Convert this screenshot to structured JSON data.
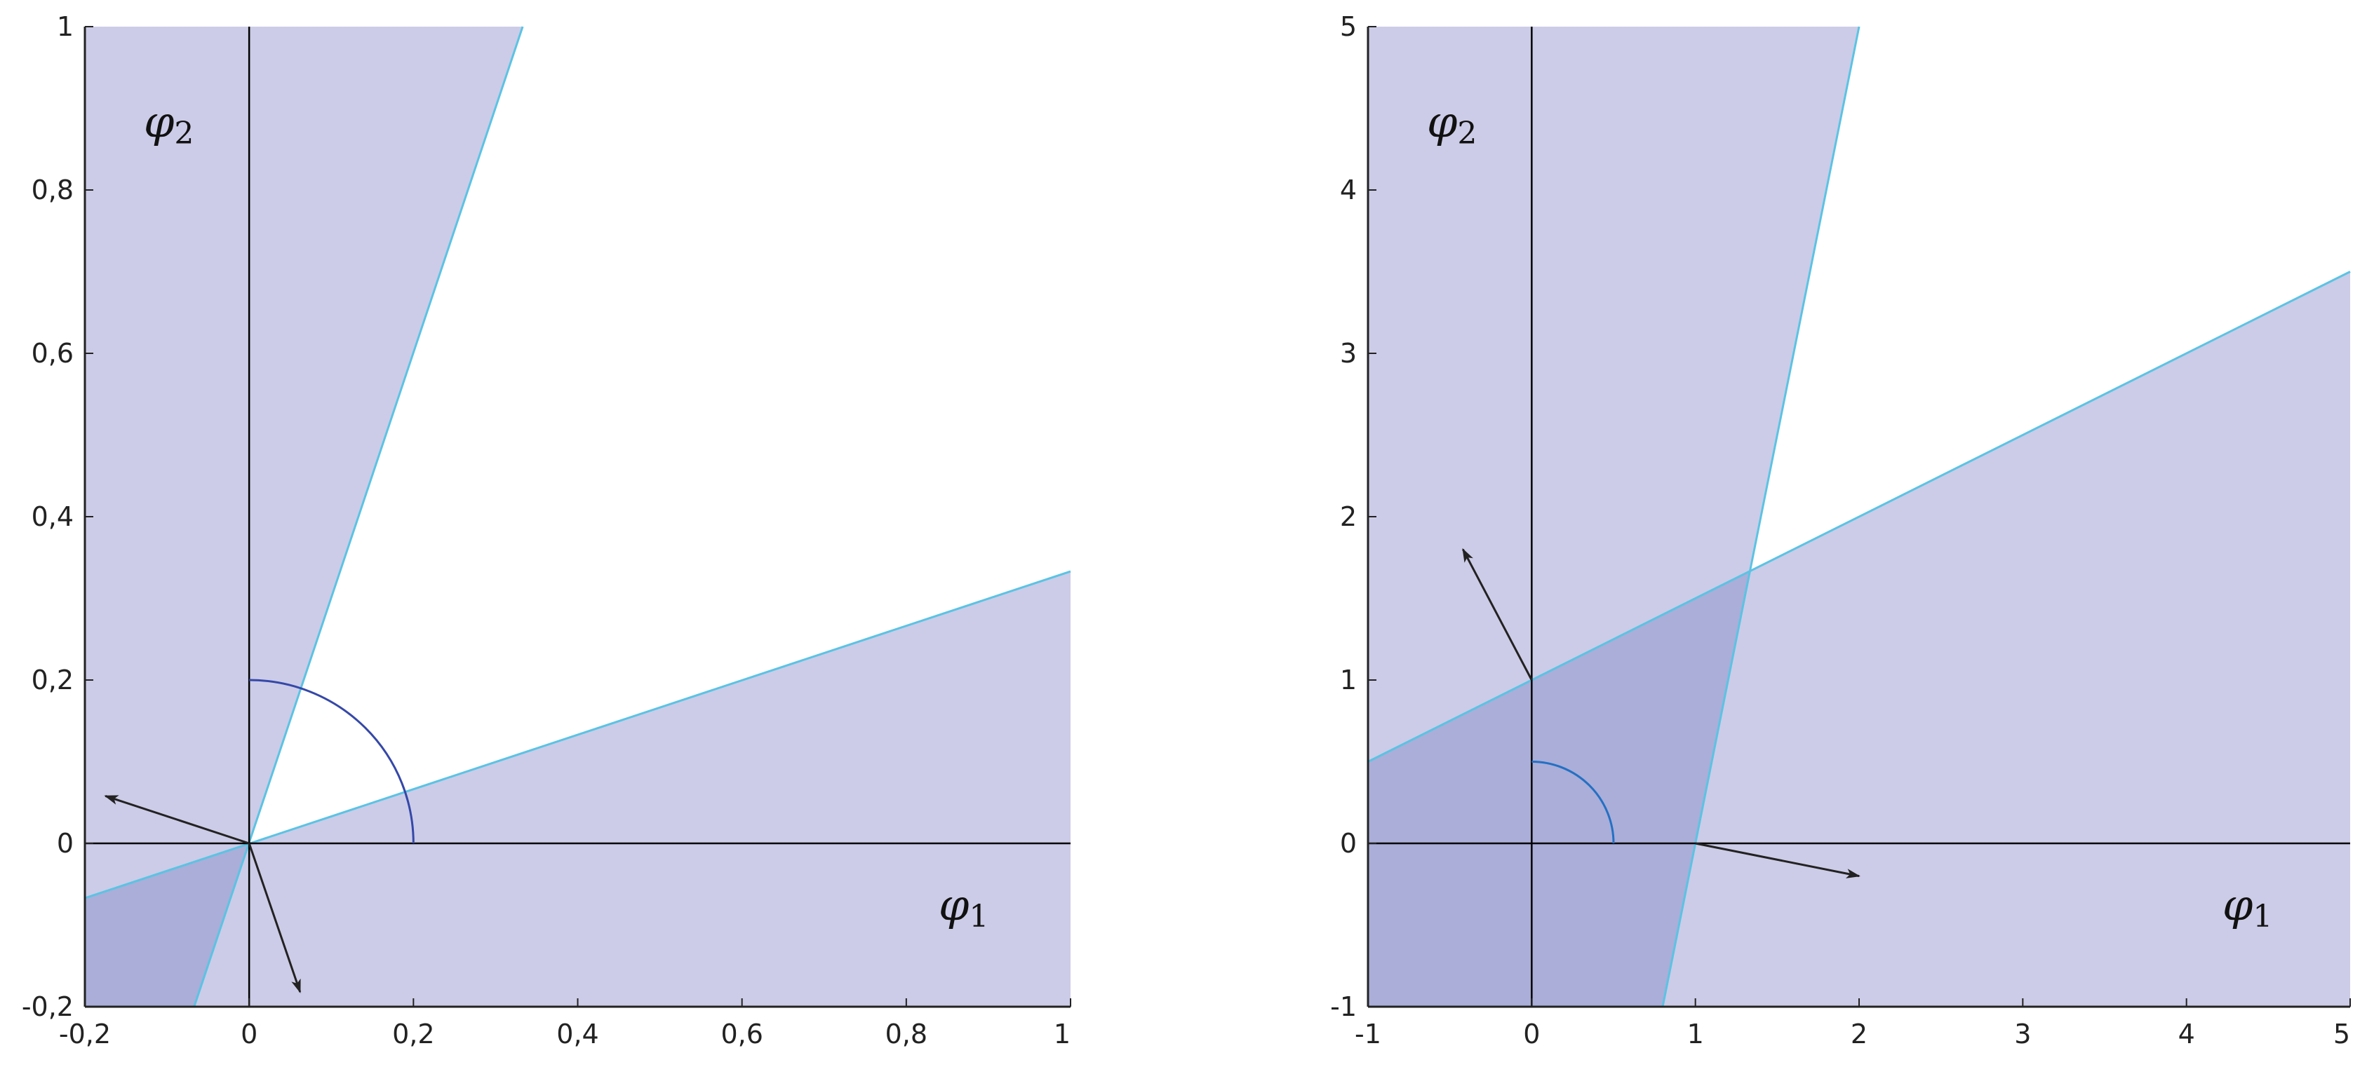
{
  "chart_data": [
    {
      "type": "area",
      "title": "",
      "xlabel": "φ1",
      "ylabel": "φ2",
      "xlabel_main": "φ",
      "xlabel_sub": "1",
      "ylabel_main": "φ",
      "ylabel_sub": "2",
      "xlim": [
        -0.2,
        1
      ],
      "ylim": [
        -0.2,
        1
      ],
      "xticks": [
        -0.2,
        0,
        0.2,
        0.4,
        0.6,
        0.8,
        1
      ],
      "yticks": [
        -0.2,
        0,
        0.2,
        0.4,
        0.6,
        0.8,
        1
      ],
      "xtick_labels": [
        "-0,2",
        "0",
        "0,2",
        "0,4",
        "0,6",
        "0,8",
        "1"
      ],
      "ytick_labels": [
        "-0,2",
        "0",
        "0,2",
        "0,4",
        "0,6",
        "0,8",
        "1"
      ],
      "grid": false,
      "lines": [
        {
          "name": "",
          "points": [
            [
              -0.2,
              -0.067
            ],
            [
              1,
              0.333
            ]
          ]
        },
        {
          "name": "",
          "points": [
            [
              -0.067,
              -0.2
            ],
            [
              0.333,
              1
            ]
          ]
        }
      ],
      "regions": [
        {
          "name": "",
          "points": [
            [
              -0.2,
              -0.2
            ],
            [
              -0.2,
              1
            ],
            [
              0.333,
              1
            ],
            [
              0,
              0
            ]
          ]
        },
        {
          "name": "",
          "points": [
            [
              -0.2,
              -0.2
            ],
            [
              1,
              -0.2
            ],
            [
              1,
              0.333
            ],
            [
              0,
              0
            ]
          ]
        }
      ],
      "overlap_region": [
        [
          -0.2,
          -0.2
        ],
        [
          -0.2,
          -0.067
        ],
        [
          0,
          0
        ],
        [
          -0.067,
          -0.2
        ]
      ],
      "arrows": [
        {
          "name": "",
          "from": [
            0,
            0
          ],
          "to": [
            -0.175,
            0.058
          ]
        },
        {
          "name": "",
          "from": [
            0,
            0
          ],
          "to": [
            0.062,
            -0.182
          ]
        }
      ],
      "arc": {
        "center": [
          0,
          0
        ],
        "radius": 0.2,
        "start_deg": 0,
        "end_deg": 90
      },
      "colors": {
        "fill": "#cccce8",
        "overlap": "#aaaed8",
        "boundary": "#5bc3e3",
        "arc": "#3548a8",
        "axis": "#000000",
        "arrow": "#222222"
      }
    },
    {
      "type": "area",
      "title": "",
      "xlabel": "φ1",
      "ylabel": "φ2",
      "xlabel_main": "φ",
      "xlabel_sub": "1",
      "ylabel_main": "φ",
      "ylabel_sub": "2",
      "xlim": [
        -1,
        5
      ],
      "ylim": [
        -1,
        5
      ],
      "xticks": [
        -1,
        0,
        1,
        2,
        3,
        4,
        5
      ],
      "yticks": [
        -1,
        0,
        1,
        2,
        3,
        4,
        5
      ],
      "xtick_labels": [
        "-1",
        "0",
        "1",
        "2",
        "3",
        "4",
        "5"
      ],
      "ytick_labels": [
        "-1",
        "0",
        "1",
        "2",
        "3",
        "4",
        "5"
      ],
      "grid": false,
      "lines": [
        {
          "name": "",
          "points": [
            [
              -1,
              0.5
            ],
            [
              5,
              3.5
            ]
          ]
        },
        {
          "name": "",
          "points": [
            [
              0.8,
              -1
            ],
            [
              2,
              5
            ]
          ]
        }
      ],
      "regions": [
        {
          "name": "",
          "points": [
            [
              -1,
              -1
            ],
            [
              -1,
              5
            ],
            [
              2,
              5
            ],
            [
              0.8,
              -1
            ]
          ]
        },
        {
          "name": "",
          "points": [
            [
              -1,
              -1
            ],
            [
              5,
              -1
            ],
            [
              5,
              3.5
            ],
            [
              -1,
              0.5
            ]
          ]
        }
      ],
      "overlap_region": [
        [
          -1,
          -1
        ],
        [
          -1,
          0.5
        ],
        [
          1.333,
          1.667
        ],
        [
          0.8,
          -1
        ]
      ],
      "arrows": [
        {
          "name": "",
          "from": [
            0,
            1
          ],
          "to": [
            -0.42,
            1.8
          ]
        },
        {
          "name": "",
          "from": [
            1,
            0
          ],
          "to": [
            2,
            -0.2
          ]
        }
      ],
      "arc": {
        "center": [
          0,
          0
        ],
        "radius": 0.5,
        "start_deg": 0,
        "end_deg": 90
      },
      "colors": {
        "fill": "#cccce8",
        "overlap": "#aaaed8",
        "boundary": "#5bc3e3",
        "arc": "#2470c4",
        "axis": "#000000",
        "arrow": "#222222"
      }
    }
  ]
}
